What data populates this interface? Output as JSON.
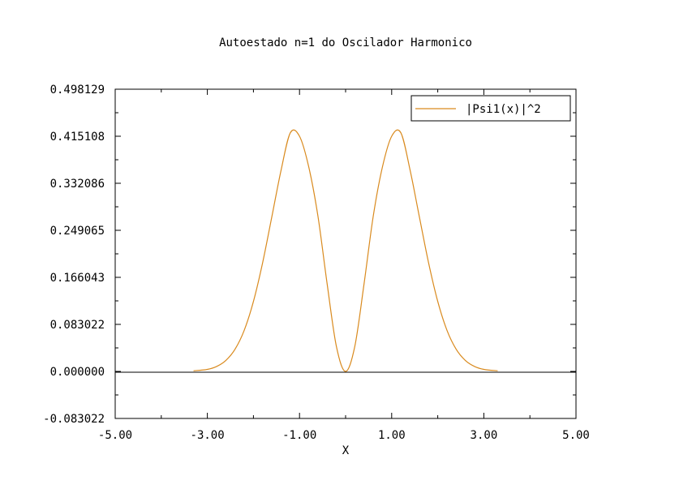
{
  "chart_data": {
    "type": "line",
    "title": "Autoestado n=1 do Oscilador Harmonico",
    "xlabel": "X",
    "ylabel": "",
    "xlim": [
      -5.0,
      5.0
    ],
    "ylim": [
      -0.083022,
      0.498129
    ],
    "x_ticks": [
      "-5.00",
      "-3.00",
      "-1.00",
      "1.00",
      "3.00",
      "5.00"
    ],
    "y_ticks": [
      "0.498129",
      "0.415108",
      "0.332086",
      "0.249065",
      "0.166043",
      "0.083022",
      "0.000000",
      "-0.083022"
    ],
    "grid": false,
    "legend_position": "top-right",
    "line_color": "#d98a1e",
    "series": [
      {
        "name": "|Psi1(x)|^2",
        "x": [
          -3.3,
          -3.0,
          -2.8,
          -2.6,
          -2.4,
          -2.2,
          -2.0,
          -1.8,
          -1.6,
          -1.4,
          -1.2,
          -1.0,
          -0.8,
          -0.6,
          -0.4,
          -0.2,
          0.0,
          0.2,
          0.4,
          0.6,
          0.8,
          1.0,
          1.2,
          1.4,
          1.6,
          1.8,
          2.0,
          2.2,
          2.4,
          2.6,
          2.8,
          3.0,
          3.3
        ],
        "y": [
          0.0011,
          0.0036,
          0.0087,
          0.0193,
          0.0391,
          0.0726,
          0.1235,
          0.192,
          0.2732,
          0.3552,
          0.4211,
          0.4151,
          0.361,
          0.274,
          0.1542,
          0.0442,
          0.0,
          0.0442,
          0.1542,
          0.274,
          0.361,
          0.4151,
          0.4211,
          0.3552,
          0.2732,
          0.192,
          0.1235,
          0.0726,
          0.0391,
          0.0193,
          0.0087,
          0.0036,
          0.0011
        ]
      }
    ]
  }
}
